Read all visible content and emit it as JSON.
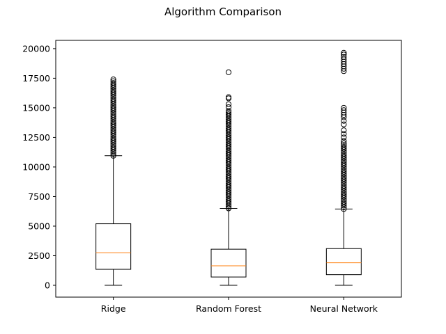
{
  "chart_data": {
    "type": "box",
    "title": "Algorithm Comparison",
    "xlabel": "",
    "ylabel": "",
    "ylim": [
      -1000,
      20700
    ],
    "yticks": [
      0,
      2500,
      5000,
      7500,
      10000,
      12500,
      15000,
      17500,
      20000
    ],
    "grid": false,
    "colors": {
      "box": "#000000",
      "median": "#ff7f0e",
      "flier": "#000000"
    },
    "categories": [
      "Ridge",
      "Random Forest",
      "Neural Network"
    ],
    "boxes": [
      {
        "label": "Ridge",
        "whisker_low": 0,
        "q1": 1350,
        "median": 2750,
        "q3": 5200,
        "whisker_high": 10950,
        "fliers": [
          10950,
          11100,
          11250,
          11400,
          11550,
          11700,
          11850,
          12000,
          12150,
          12300,
          12450,
          12600,
          12750,
          12900,
          13050,
          13200,
          13350,
          13500,
          13650,
          13800,
          13950,
          14100,
          14250,
          14400,
          14550,
          14700,
          14850,
          15000,
          15150,
          15300,
          15450,
          15600,
          15750,
          15900,
          16050,
          16200,
          16350,
          16500,
          16650,
          16800,
          16950,
          17100,
          17250,
          17400
        ]
      },
      {
        "label": "Random Forest",
        "whisker_low": 0,
        "q1": 700,
        "median": 1650,
        "q3": 3050,
        "whisker_high": 6500,
        "fliers": [
          6500,
          6650,
          6800,
          6950,
          7100,
          7250,
          7400,
          7550,
          7700,
          7850,
          8000,
          8150,
          8300,
          8450,
          8600,
          8750,
          8900,
          9050,
          9200,
          9350,
          9500,
          9650,
          9800,
          9950,
          10100,
          10250,
          10400,
          10550,
          10700,
          10850,
          11000,
          11150,
          11300,
          11450,
          11600,
          11750,
          11900,
          12050,
          12200,
          12350,
          12500,
          12650,
          12800,
          12950,
          13100,
          13250,
          13400,
          13550,
          13700,
          13850,
          14000,
          14150,
          14300,
          14450,
          14600,
          14750,
          15050,
          15300,
          15800,
          15900,
          18000
        ]
      },
      {
        "label": "Neural Network",
        "whisker_low": 0,
        "q1": 900,
        "median": 1900,
        "q3": 3100,
        "whisker_high": 6450,
        "fliers": [
          6450,
          6600,
          6750,
          6900,
          7050,
          7200,
          7350,
          7500,
          7650,
          7800,
          7950,
          8100,
          8250,
          8400,
          8550,
          8700,
          8850,
          9000,
          9150,
          9300,
          9450,
          9600,
          9750,
          9900,
          10050,
          10200,
          10350,
          10500,
          10650,
          10800,
          10950,
          11100,
          11250,
          11400,
          11550,
          11700,
          11850,
          12000,
          12200,
          12500,
          12800,
          13100,
          13600,
          13900,
          14200,
          14400,
          14600,
          14800,
          15000,
          18100,
          18300,
          18500,
          18700,
          18900,
          19100,
          19300,
          19500,
          19650
        ]
      }
    ]
  }
}
